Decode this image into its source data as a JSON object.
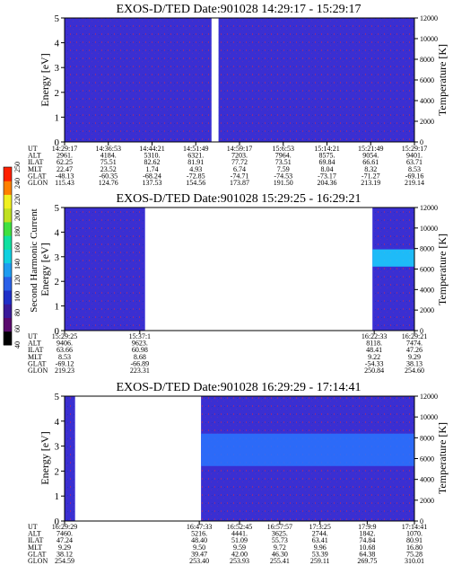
{
  "chart_data": [
    {
      "type": "heatmap",
      "title": "EXOS-D/TED   Date:901028  14:29:17 - 15:29:17",
      "ylabel": "Energy [eV]",
      "y2label": "Temperature [K]",
      "ylim": [
        0,
        5
      ],
      "y2lim": [
        0,
        12000
      ],
      "yticks": [
        "0",
        "1",
        "2",
        "3",
        "4",
        "5"
      ],
      "y2ticks": [
        "0",
        "2000",
        "4000",
        "6000",
        "8000",
        "10000",
        "12000"
      ],
      "data_segments": [
        [
          0,
          0.42
        ],
        [
          0.44,
          1.0
        ]
      ],
      "band": null,
      "table": {
        "row_labels": [
          "UT",
          "ALT",
          "ILAT",
          "MLT",
          "GLAT",
          "GLON"
        ],
        "columns": [
          {
            "pos": 0.0,
            "values": [
              "14:29:17",
              "2961.",
              "62.25",
              "22.47",
              "-48.13",
              "115.43"
            ]
          },
          {
            "pos": 0.125,
            "values": [
              "14:36:53",
              "4184.",
              "75.51",
              "23.52",
              "-60.35",
              "124.76"
            ]
          },
          {
            "pos": 0.25,
            "values": [
              "14:44:21",
              "5310.",
              "82.62",
              "1.74",
              "-68.24",
              "137.53"
            ]
          },
          {
            "pos": 0.375,
            "values": [
              "14:51:49",
              "6321.",
              "81.91",
              "4.93",
              "-72.85",
              "154.56"
            ]
          },
          {
            "pos": 0.5,
            "values": [
              "14:59:17",
              "7203.",
              "77.72",
              "6.74",
              "-74.71",
              "173.87"
            ]
          },
          {
            "pos": 0.625,
            "values": [
              "15:6:53",
              "7964.",
              "73.51",
              "7.59",
              "-74.53",
              "191.50"
            ]
          },
          {
            "pos": 0.75,
            "values": [
              "15:14:21",
              "8575.",
              "69.84",
              "8.04",
              "-73.17",
              "204.36"
            ]
          },
          {
            "pos": 0.875,
            "values": [
              "15:21:49",
              "9054.",
              "66.61",
              "8.32",
              "-71.27",
              "213.19"
            ]
          },
          {
            "pos": 1.0,
            "values": [
              "15:29:17",
              "9401.",
              "63.71",
              "8.53",
              "-69.16",
              "219.14"
            ]
          }
        ]
      }
    },
    {
      "type": "heatmap",
      "title": "EXOS-D/TED   Date:901028  15:29:25 - 16:29:21",
      "ylabel": "Energy [eV]",
      "y2label": "Temperature [K]",
      "ylim": [
        0,
        5
      ],
      "y2lim": [
        0,
        12000
      ],
      "yticks": [
        "0",
        "1",
        "2",
        "3",
        "4",
        "5"
      ],
      "y2ticks": [
        "0",
        "2000",
        "4000",
        "6000",
        "8000",
        "10000",
        "12000"
      ],
      "data_segments": [
        [
          0,
          0.23
        ],
        [
          0.88,
          1.0
        ]
      ],
      "band": {
        "from": 0.88,
        "to": 1.0,
        "ymin": 2.6,
        "ymax": 3.3,
        "color": "#1ad3ff"
      },
      "table": {
        "row_labels": [
          "UT",
          "ALT",
          "ILAT",
          "MLT",
          "GLAT",
          "GLON"
        ],
        "columns": [
          {
            "pos": 0.0,
            "values": [
              "15:29:25",
              "9406.",
              "63.66",
              "8.53",
              "-69.12",
              "219.23"
            ]
          },
          {
            "pos": 0.215,
            "values": [
              "15:37:1",
              "9623.",
              "60.98",
              "8.68",
              "-66.89",
              "223.31"
            ]
          },
          {
            "pos": 0.885,
            "values": [
              "16:22:33",
              "8118.",
              "48.41",
              "9.22",
              "-54.33",
              "250.84"
            ]
          },
          {
            "pos": 1.0,
            "values": [
              "16:29:21",
              "7474.",
              "47.26",
              "9.29",
              "38.13",
              "254.60"
            ]
          }
        ]
      }
    },
    {
      "type": "heatmap",
      "title": "EXOS-D/TED   Date:901028  16:29:29 - 17:14:41",
      "ylabel": "Energy [eV]",
      "y2label": "Temperature [K]",
      "ylim": [
        0,
        5
      ],
      "y2lim": [
        0,
        12000
      ],
      "yticks": [
        "0",
        "1",
        "2",
        "3",
        "4",
        "5"
      ],
      "y2ticks": [
        "0",
        "2000",
        "4000",
        "6000",
        "8000",
        "10000",
        "12000"
      ],
      "data_segments": [
        [
          0,
          0.03
        ],
        [
          0.39,
          1.0
        ]
      ],
      "band": {
        "from": 0.39,
        "to": 1.0,
        "ymin": 2.2,
        "ymax": 3.5,
        "color": "#2a74ff"
      },
      "table": {
        "row_labels": [
          "UT",
          "ALT",
          "ILAT",
          "MLT",
          "GLAT",
          "GLON"
        ],
        "columns": [
          {
            "pos": 0.0,
            "values": [
              "16:29:29",
              "7460.",
              "47.24",
              "9.29",
              "38.12",
              "254.59"
            ]
          },
          {
            "pos": 0.385,
            "values": [
              "16:47:33",
              "5216.",
              "48.40",
              "9.50",
              "39.47",
              "253.40"
            ]
          },
          {
            "pos": 0.5,
            "values": [
              "16:52:45",
              "4441.",
              "51.09",
              "9.59",
              "42.00",
              "253.93"
            ]
          },
          {
            "pos": 0.615,
            "values": [
              "16:57:57",
              "3625.",
              "55.73",
              "9.72",
              "46.30",
              "255.41"
            ]
          },
          {
            "pos": 0.73,
            "values": [
              "17:3:25",
              "2744.",
              "63.41",
              "9.96",
              "53.39",
              "259.11"
            ]
          },
          {
            "pos": 0.865,
            "values": [
              "17:9:9",
              "1842.",
              "74.84",
              "10.68",
              "64.38",
              "269.75"
            ]
          },
          {
            "pos": 1.0,
            "values": [
              "17:14:41",
              "1070.",
              "80.91",
              "16.80",
              "75.28",
              "310.01"
            ]
          }
        ]
      }
    }
  ],
  "colorbar": {
    "label": "Second Harmonic Current",
    "ticks": [
      "40",
      "60",
      "80",
      "100",
      "120",
      "140",
      "160",
      "180",
      "200",
      "220",
      "240",
      "250"
    ],
    "colors": [
      "#000000",
      "#5a0a6e",
      "#3a1a9a",
      "#1f2fc8",
      "#2a60e8",
      "#1f9cf0",
      "#10d0e0",
      "#10e0a0",
      "#40e040",
      "#c0e020",
      "#f0f020",
      "#ff8000",
      "#ff2000"
    ]
  }
}
